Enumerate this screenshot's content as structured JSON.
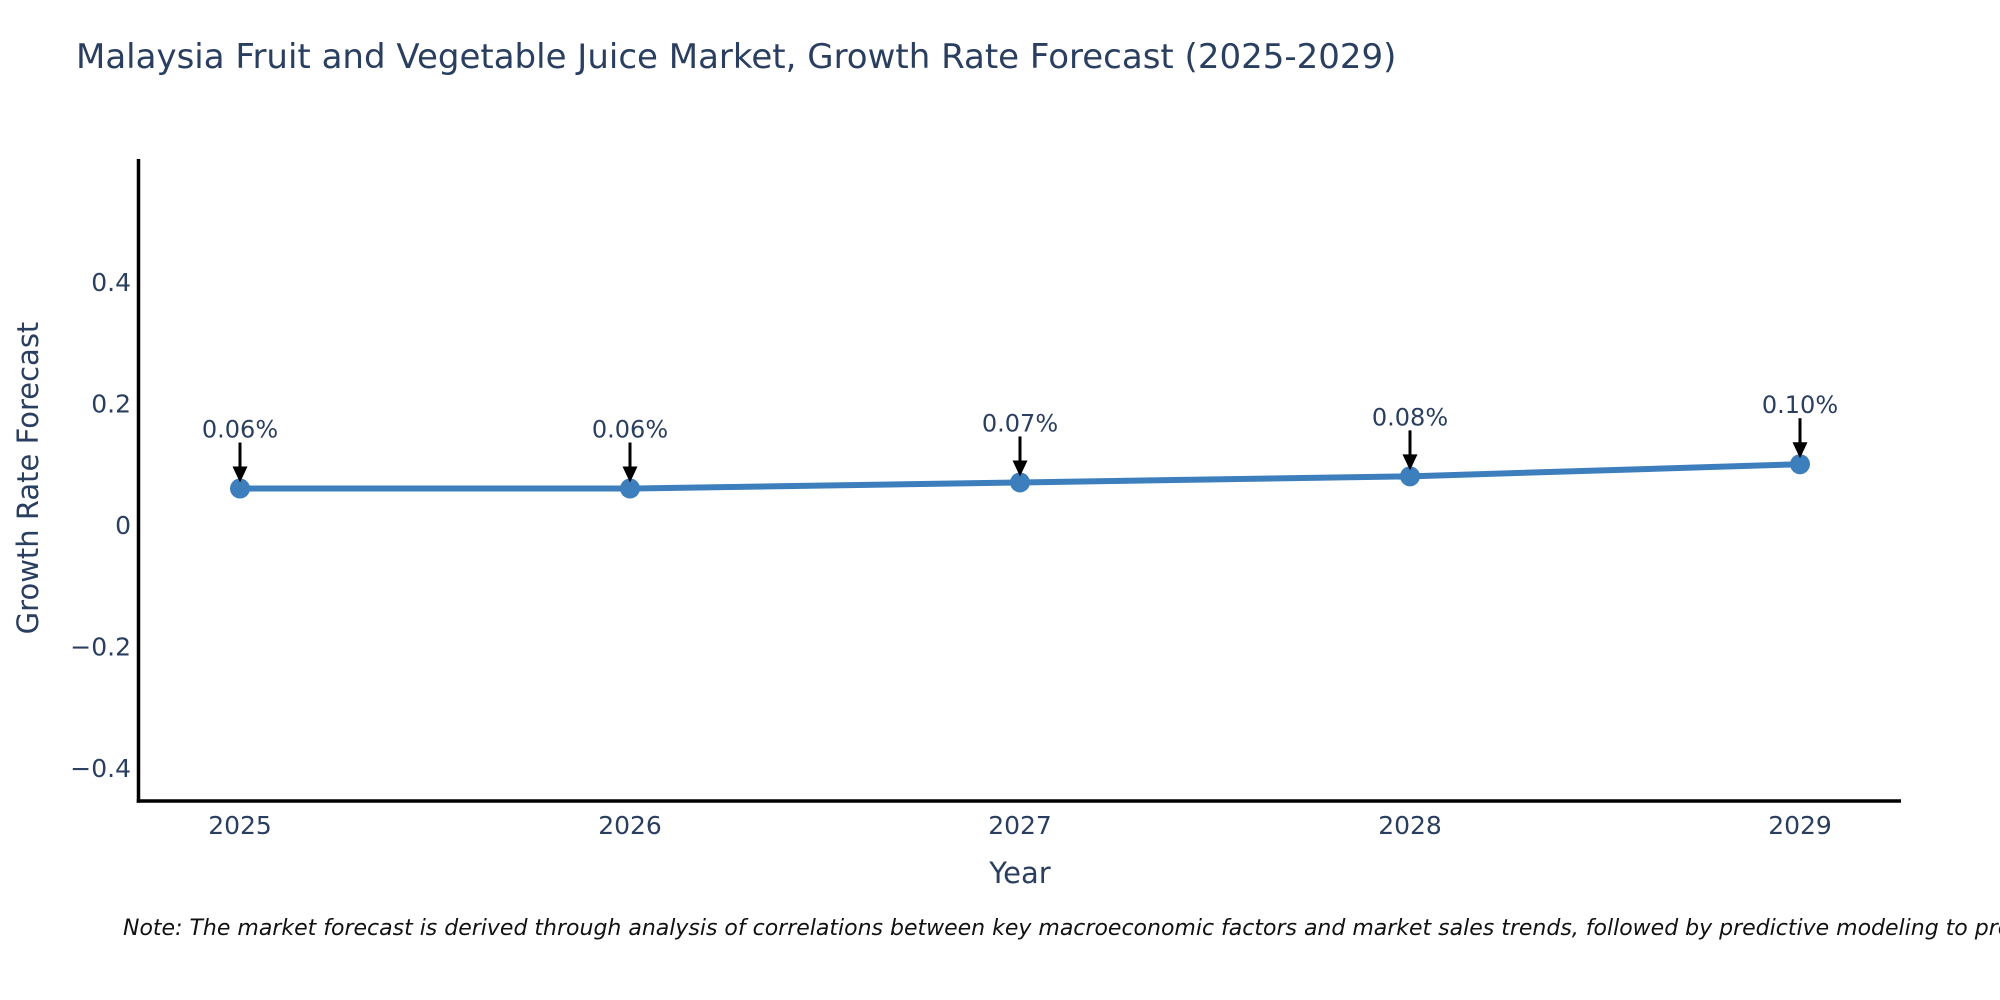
{
  "title": "Malaysia Fruit and Vegetable Juice Market, Growth Rate Forecast (2025-2029)",
  "note": "Note: The market forecast is derived through analysis of correlations between key macroeconomic factors and market sales trends, followed by predictive modeling to project future sal",
  "colors": {
    "text": "#2a3f5f",
    "line": "#3d7ebd",
    "marker": "#3d7ebd",
    "axis": "#000000",
    "arrow": "#000000",
    "background": "#ffffff"
  },
  "chart_data": {
    "type": "line",
    "title": "Malaysia Fruit and Vegetable Juice Market, Growth Rate Forecast (2025-2029)",
    "xlabel": "Year",
    "ylabel": "Growth Rate Forecast",
    "x": [
      2025,
      2026,
      2027,
      2028,
      2029
    ],
    "series": [
      {
        "name": "Growth Rate Forecast",
        "values": [
          0.06,
          0.06,
          0.07,
          0.08,
          0.1
        ],
        "point_labels": [
          "0.06%",
          "0.06%",
          "0.07%",
          "0.08%",
          "0.10%"
        ]
      }
    ],
    "xtick_labels": [
      "2025",
      "2026",
      "2027",
      "2028",
      "2029"
    ],
    "ytick_values": [
      0.4,
      0.2,
      0,
      -0.2,
      -0.4
    ],
    "ytick_labels": [
      "0.4",
      "0.2",
      "0",
      "−0.2",
      "−0.4"
    ],
    "ylim": [
      -0.45,
      0.6
    ],
    "grid": false,
    "legend_position": "none",
    "markers": true,
    "annotations_with_arrows": true
  }
}
